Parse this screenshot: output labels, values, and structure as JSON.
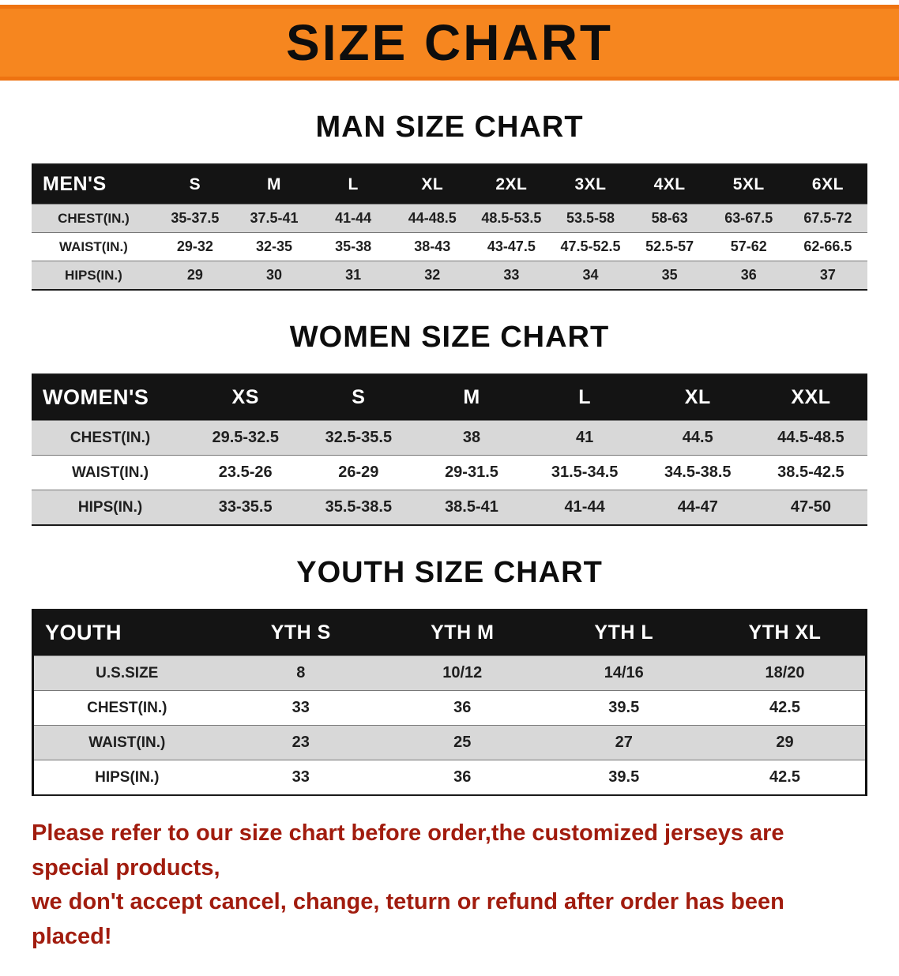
{
  "banner": {
    "title": "SIZE CHART"
  },
  "sections": [
    {
      "heading": "MAN SIZE CHART",
      "table": {
        "header": [
          "MEN'S",
          "S",
          "M",
          "L",
          "XL",
          "2XL",
          "3XL",
          "4XL",
          "5XL",
          "6XL"
        ],
        "rows": [
          [
            "CHEST(IN.)",
            "35-37.5",
            "37.5-41",
            "41-44",
            "44-48.5",
            "48.5-53.5",
            "53.5-58",
            "58-63",
            "63-67.5",
            "67.5-72"
          ],
          [
            "WAIST(IN.)",
            "29-32",
            "32-35",
            "35-38",
            "38-43",
            "43-47.5",
            "47.5-52.5",
            "52.5-57",
            "57-62",
            "62-66.5"
          ],
          [
            "HIPS(IN.)",
            "29",
            "30",
            "31",
            "32",
            "33",
            "34",
            "35",
            "36",
            "37"
          ]
        ]
      }
    },
    {
      "heading": "WOMEN SIZE CHART",
      "table": {
        "header": [
          "WOMEN'S",
          "XS",
          "S",
          "M",
          "L",
          "XL",
          "XXL"
        ],
        "rows": [
          [
            "CHEST(IN.)",
            "29.5-32.5",
            "32.5-35.5",
            "38",
            "41",
            "44.5",
            "44.5-48.5"
          ],
          [
            "WAIST(IN.)",
            "23.5-26",
            "26-29",
            "29-31.5",
            "31.5-34.5",
            "34.5-38.5",
            "38.5-42.5"
          ],
          [
            "HIPS(IN.)",
            "33-35.5",
            "35.5-38.5",
            "38.5-41",
            "41-44",
            "44-47",
            "47-50"
          ]
        ]
      }
    },
    {
      "heading": "YOUTH SIZE CHART",
      "table": {
        "header": [
          "YOUTH",
          "YTH S",
          "YTH M",
          "YTH L",
          "YTH XL"
        ],
        "rows": [
          [
            "U.S.SIZE",
            "8",
            "10/12",
            "14/16",
            "18/20"
          ],
          [
            "CHEST(IN.)",
            "33",
            "36",
            "39.5",
            "42.5"
          ],
          [
            "WAIST(IN.)",
            "23",
            "25",
            "27",
            "29"
          ],
          [
            "HIPS(IN.)",
            "33",
            "36",
            "39.5",
            "42.5"
          ]
        ]
      }
    }
  ],
  "footer": {
    "line1": "Please refer to our size chart before order,the customized jerseys are special products,",
    "line2": "we don't accept cancel, change, teturn or refund after order has been placed!"
  },
  "colors": {
    "banner_bg": "#f6861f",
    "header_row_bg": "#141414",
    "alt_row_bg": "#d8d8d8",
    "footer_text": "#a11c0e"
  }
}
